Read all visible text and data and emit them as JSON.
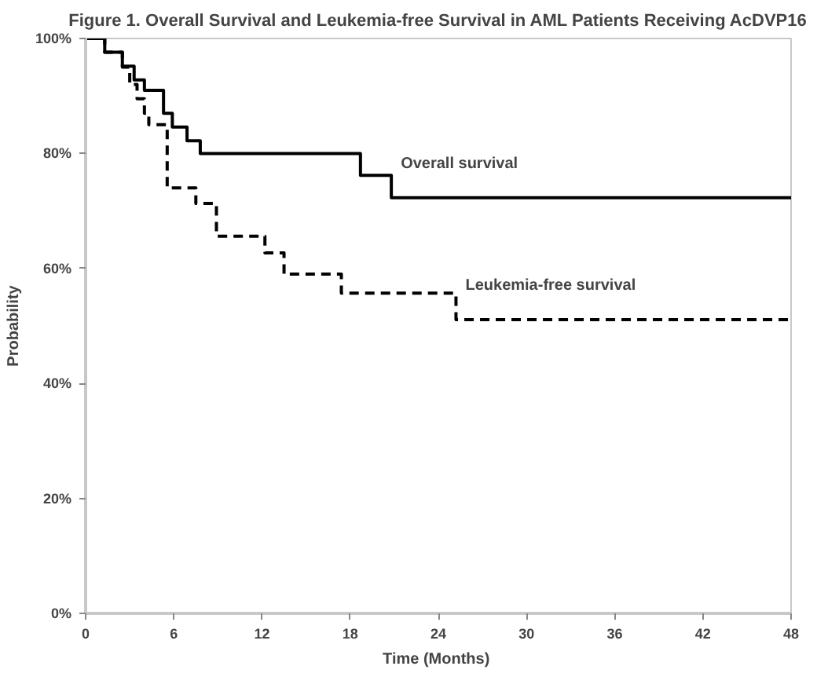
{
  "chart_data": {
    "type": "step",
    "title": "Figure 1. Overall Survival and Leukemia-free Survival in AML Patients Receiving AcDVP16",
    "xlabel": "Time  (Months)",
    "ylabel": "Probability",
    "xlim": [
      0,
      48
    ],
    "xticks": [
      0,
      6,
      12,
      18,
      24,
      30,
      36,
      42,
      48
    ],
    "ylim": [
      0,
      100
    ],
    "yticks": [
      {
        "value": 0,
        "label": "0%"
      },
      {
        "value": 20,
        "label": "20%"
      },
      {
        "value": 40,
        "label": "40%"
      },
      {
        "value": 60,
        "label": "60%"
      },
      {
        "value": 80,
        "label": "80%"
      },
      {
        "value": 100,
        "label": "100%"
      }
    ],
    "grid": false,
    "legend": false,
    "series": [
      {
        "name": "Overall survival",
        "color": "#000000",
        "line_style": "solid",
        "x": [
          0,
          1.3,
          2.5,
          3.3,
          4,
          5.3,
          5.9,
          6.9,
          7.8,
          18.7,
          20.8,
          48
        ],
        "values": [
          100,
          97.6,
          95.2,
          92.8,
          91,
          87,
          84.6,
          82.2,
          80,
          76.2,
          72.3,
          72.3
        ]
      },
      {
        "name": "Leukemia-free survival",
        "color": "#000000",
        "line_style": "dashed",
        "x": [
          0,
          1.3,
          2.5,
          3,
          3.5,
          4,
          4.3,
          5.55,
          7.5,
          8.9,
          12.2,
          13.5,
          17.4,
          25.2,
          48
        ],
        "values": [
          100,
          97.6,
          95,
          92,
          89.5,
          87,
          85,
          74,
          71.3,
          65.6,
          62.7,
          59,
          55.7,
          51.1,
          51.1
        ]
      }
    ]
  }
}
